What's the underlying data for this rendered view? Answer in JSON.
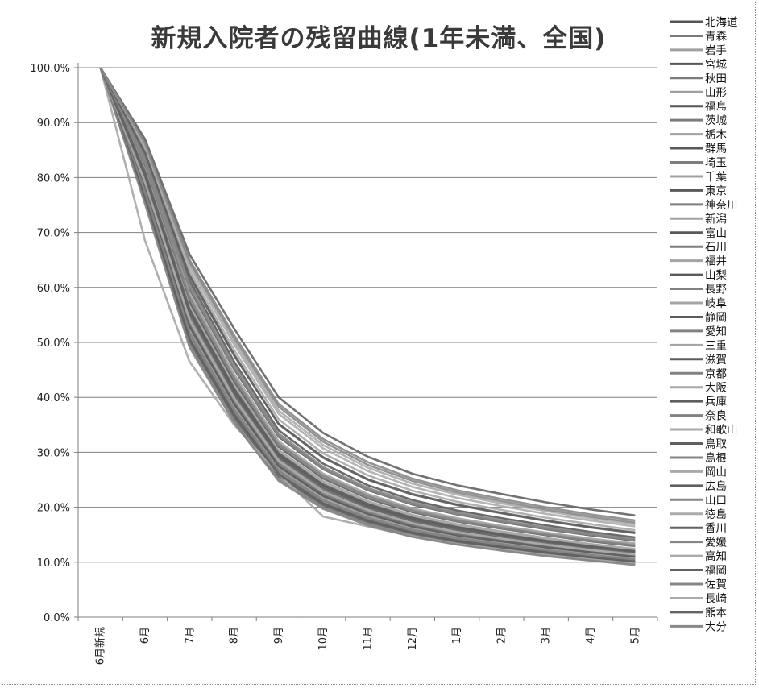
{
  "chart_data": {
    "type": "line",
    "title": "新規入院者の残留曲線(1年未満、全国)",
    "xlabel": "",
    "ylabel": "",
    "categories": [
      "6月新規",
      "6月",
      "7月",
      "8月",
      "9月",
      "10月",
      "11月",
      "12月",
      "1月",
      "2月",
      "3月",
      "4月",
      "5月"
    ],
    "y_ticks": [
      "0.0%",
      "10.0%",
      "20.0%",
      "30.0%",
      "40.0%",
      "50.0%",
      "60.0%",
      "70.0%",
      "80.0%",
      "90.0%",
      "100.0%"
    ],
    "ylim": [
      0,
      100
    ],
    "grid": true,
    "legend_position": "right",
    "series": [
      {
        "name": "北海道",
        "values": [
          100,
          80.5,
          55.8,
          41.2,
          29.5,
          23.9,
          20.4,
          17.9,
          16.2,
          15.0,
          13.8,
          12.7,
          11.9
        ]
      },
      {
        "name": "青森",
        "values": [
          100,
          79.3,
          54.5,
          40.1,
          28.6,
          23.0,
          19.6,
          17.2,
          15.6,
          14.4,
          13.3,
          12.3,
          11.5
        ]
      },
      {
        "name": "岩手",
        "values": [
          100,
          81.6,
          56.9,
          42.3,
          30.4,
          24.7,
          21.1,
          18.6,
          16.9,
          15.6,
          14.4,
          13.3,
          12.4
        ]
      },
      {
        "name": "宮城",
        "values": [
          100,
          77.9,
          52.8,
          38.6,
          27.3,
          21.9,
          18.6,
          16.3,
          14.7,
          13.6,
          12.5,
          11.6,
          10.8
        ]
      },
      {
        "name": "秋田",
        "values": [
          100,
          82.3,
          58.4,
          43.7,
          31.6,
          25.8,
          22.1,
          19.6,
          17.8,
          16.4,
          15.2,
          14.1,
          13.2
        ]
      },
      {
        "name": "山形",
        "values": [
          100,
          80.9,
          55.2,
          40.6,
          28.9,
          23.2,
          19.8,
          17.4,
          15.8,
          14.6,
          13.4,
          12.4,
          11.6
        ]
      },
      {
        "name": "福島",
        "values": [
          100,
          83.4,
          59.7,
          45.1,
          32.8,
          26.9,
          23.1,
          20.5,
          18.7,
          17.3,
          16.0,
          14.9,
          13.9
        ]
      },
      {
        "name": "茨城",
        "values": [
          100,
          78.6,
          53.3,
          39.2,
          27.9,
          22.4,
          19.1,
          16.8,
          15.2,
          14.0,
          12.9,
          11.9,
          11.1
        ]
      },
      {
        "name": "栃木",
        "values": [
          100,
          81.2,
          56.3,
          41.8,
          29.9,
          24.2,
          20.7,
          18.2,
          16.5,
          15.2,
          14.0,
          13.0,
          12.1
        ]
      },
      {
        "name": "群馬",
        "values": [
          100,
          79.8,
          54.9,
          40.4,
          28.8,
          23.1,
          19.7,
          17.3,
          15.7,
          14.5,
          13.3,
          12.3,
          11.5
        ]
      },
      {
        "name": "埼玉",
        "values": [
          100,
          77.2,
          51.6,
          37.6,
          26.5,
          21.2,
          18.0,
          15.8,
          14.3,
          13.2,
          12.1,
          11.2,
          10.4
        ]
      },
      {
        "name": "千葉",
        "values": [
          100,
          78.1,
          52.4,
          38.3,
          27.0,
          21.6,
          18.4,
          16.1,
          14.6,
          13.5,
          12.4,
          11.5,
          10.7
        ]
      },
      {
        "name": "東京",
        "values": [
          100,
          76.4,
          50.2,
          36.4,
          25.6,
          20.4,
          17.3,
          15.2,
          13.7,
          12.6,
          11.6,
          10.7,
          9.9
        ]
      },
      {
        "name": "神奈川",
        "values": [
          100,
          75.8,
          49.6,
          35.8,
          25.1,
          20.0,
          17.0,
          14.9,
          13.4,
          12.3,
          11.3,
          10.4,
          9.7
        ]
      },
      {
        "name": "新潟",
        "values": [
          100,
          82.8,
          58.9,
          44.2,
          32.0,
          26.1,
          22.4,
          19.8,
          18.0,
          16.6,
          15.4,
          14.3,
          13.4
        ]
      },
      {
        "name": "富山",
        "values": [
          100,
          84.1,
          61.2,
          46.5,
          34.0,
          27.9,
          24.0,
          21.3,
          19.4,
          18.0,
          16.7,
          15.5,
          14.5
        ]
      },
      {
        "name": "石川",
        "values": [
          100,
          80.1,
          55.0,
          40.7,
          29.0,
          23.4,
          20.0,
          17.6,
          16.0,
          14.8,
          13.6,
          12.6,
          11.8
        ]
      },
      {
        "name": "福井",
        "values": [
          100,
          79.0,
          53.9,
          39.7,
          28.3,
          22.7,
          19.4,
          17.0,
          15.4,
          14.2,
          13.1,
          12.1,
          11.3
        ]
      },
      {
        "name": "山梨",
        "values": [
          100,
          81.9,
          57.4,
          42.9,
          31.0,
          25.2,
          21.6,
          19.1,
          17.4,
          16.1,
          14.9,
          13.8,
          12.9
        ]
      },
      {
        "name": "長野",
        "values": [
          100,
          78.9,
          53.6,
          39.4,
          28.1,
          22.6,
          19.3,
          16.9,
          15.3,
          14.1,
          13.0,
          12.0,
          11.2
        ]
      },
      {
        "name": "岐阜",
        "values": [
          100,
          77.6,
          52.1,
          38.0,
          26.8,
          21.4,
          18.2,
          16.0,
          14.5,
          13.4,
          12.3,
          11.4,
          10.6
        ]
      },
      {
        "name": "静岡",
        "values": [
          100,
          80.7,
          55.9,
          41.5,
          29.7,
          24.0,
          20.5,
          18.0,
          16.4,
          15.1,
          13.9,
          12.9,
          12.0
        ]
      },
      {
        "name": "愛知",
        "values": [
          100,
          76.9,
          51.0,
          37.1,
          26.1,
          20.8,
          17.7,
          15.5,
          14.0,
          12.9,
          11.9,
          11.0,
          10.2
        ]
      },
      {
        "name": "三重",
        "values": [
          100,
          79.6,
          54.2,
          39.9,
          28.5,
          22.9,
          19.5,
          17.1,
          15.5,
          14.3,
          13.2,
          12.2,
          11.4
        ]
      },
      {
        "name": "滋賀",
        "values": [
          100,
          78.3,
          52.9,
          38.8,
          27.5,
          22.1,
          18.8,
          16.5,
          14.9,
          13.8,
          12.7,
          11.8,
          11.0
        ]
      },
      {
        "name": "京都",
        "values": [
          100,
          77.4,
          51.8,
          37.8,
          26.7,
          21.3,
          18.1,
          15.9,
          14.4,
          13.3,
          12.2,
          11.3,
          10.5
        ]
      },
      {
        "name": "大阪",
        "values": [
          100,
          68.5,
          46.5,
          35.0,
          26.0,
          18.3,
          16.5,
          14.7,
          13.3,
          12.3,
          11.3,
          10.5,
          9.8
        ]
      },
      {
        "name": "兵庫",
        "values": [
          100,
          76.1,
          50.6,
          36.9,
          26.0,
          20.7,
          17.6,
          15.4,
          13.9,
          12.8,
          11.8,
          10.9,
          10.1
        ]
      },
      {
        "name": "奈良",
        "values": [
          100,
          75.2,
          49.1,
          35.4,
          24.8,
          19.7,
          16.7,
          14.6,
          13.2,
          12.1,
          11.1,
          10.3,
          9.5
        ]
      },
      {
        "name": "和歌山",
        "values": [
          100,
          81.4,
          56.6,
          42.1,
          30.2,
          24.5,
          20.9,
          18.4,
          16.7,
          15.4,
          14.2,
          13.2,
          12.3
        ]
      },
      {
        "name": "鳥取",
        "values": [
          100,
          84.9,
          62.3,
          47.8,
          35.1,
          29.0,
          25.0,
          22.3,
          20.4,
          18.9,
          17.5,
          16.3,
          15.3
        ]
      },
      {
        "name": "島根",
        "values": [
          100,
          83.7,
          60.5,
          45.8,
          33.4,
          27.3,
          23.5,
          20.9,
          19.0,
          17.6,
          16.3,
          15.2,
          14.2
        ]
      },
      {
        "name": "岡山",
        "values": [
          100,
          79.1,
          54.0,
          39.8,
          28.4,
          22.8,
          19.5,
          17.1,
          15.5,
          14.3,
          13.2,
          12.2,
          11.4
        ]
      },
      {
        "name": "広島",
        "values": [
          100,
          80.3,
          55.4,
          40.9,
          29.2,
          23.6,
          20.1,
          17.7,
          16.1,
          14.9,
          13.7,
          12.7,
          11.9
        ]
      },
      {
        "name": "山口",
        "values": [
          100,
          82.6,
          58.1,
          43.4,
          31.3,
          25.5,
          21.8,
          19.3,
          17.5,
          16.2,
          15.0,
          13.9,
          13.0
        ]
      },
      {
        "name": "徳島",
        "values": [
          100,
          85.3,
          63.0,
          48.6,
          36.0,
          29.8,
          25.8,
          23.0,
          21.0,
          19.5,
          18.1,
          16.9,
          15.8
        ]
      },
      {
        "name": "香川",
        "values": [
          100,
          81.0,
          56.0,
          41.6,
          29.8,
          24.1,
          20.6,
          18.1,
          16.4,
          15.1,
          13.9,
          12.9,
          12.0
        ]
      },
      {
        "name": "愛媛",
        "values": [
          100,
          83.1,
          60.0,
          45.3,
          33.0,
          27.0,
          23.2,
          20.6,
          18.8,
          17.4,
          16.1,
          15.0,
          14.0
        ]
      },
      {
        "name": "高知",
        "values": [
          100,
          86.0,
          64.2,
          50.1,
          37.6,
          31.3,
          27.2,
          24.3,
          22.3,
          20.7,
          19.3,
          18.0,
          16.9
        ]
      },
      {
        "name": "福岡",
        "values": [
          100,
          84.5,
          62.0,
          47.6,
          35.2,
          29.1,
          25.1,
          22.4,
          20.5,
          19.0,
          17.6,
          16.4,
          15.4
        ]
      },
      {
        "name": "佐賀",
        "values": [
          100,
          86.5,
          65.0,
          51.3,
          38.8,
          32.4,
          28.2,
          25.2,
          23.1,
          21.5,
          20.0,
          18.7,
          17.6
        ]
      },
      {
        "name": "長崎",
        "values": [
          100,
          85.8,
          63.8,
          49.6,
          37.0,
          30.7,
          26.6,
          23.7,
          21.7,
          20.2,
          18.8,
          17.6,
          16.5
        ]
      },
      {
        "name": "熊本",
        "values": [
          100,
          87.0,
          66.0,
          52.5,
          40.0,
          33.5,
          29.2,
          26.1,
          24.0,
          22.4,
          20.9,
          19.6,
          18.5
        ]
      },
      {
        "name": "大分",
        "values": [
          100,
          86.2,
          64.6,
          50.8,
          38.3,
          31.9,
          27.7,
          24.8,
          22.7,
          21.1,
          19.6,
          18.3,
          17.2
        ]
      }
    ]
  }
}
